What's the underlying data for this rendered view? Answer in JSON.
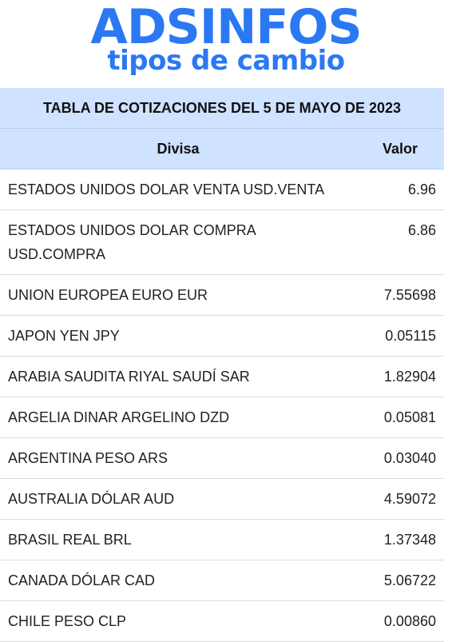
{
  "logo": {
    "name": "ADSINFOS",
    "tagline": "tipos de cambio"
  },
  "table": {
    "caption": "TABLA DE COTIZACIONES DEL 5 DE MAYO DE 2023",
    "headers": {
      "currency": "Divisa",
      "value": "Valor"
    },
    "rows": [
      {
        "currency": "ESTADOS UNIDOS DOLAR VENTA USD.VENTA",
        "value": "6.96"
      },
      {
        "currency": "ESTADOS UNIDOS DOLAR COMPRA USD.COMPRA",
        "value": "6.86"
      },
      {
        "currency": "UNION EUROPEA EURO EUR",
        "value": "7.55698"
      },
      {
        "currency": "JAPON YEN JPY",
        "value": "0.05115"
      },
      {
        "currency": "ARABIA SAUDITA RIYAL SAUDÍ SAR",
        "value": "1.82904"
      },
      {
        "currency": "ARGELIA DINAR ARGELINO DZD",
        "value": "0.05081"
      },
      {
        "currency": "ARGENTINA PESO ARS",
        "value": "0.03040"
      },
      {
        "currency": "AUSTRALIA DÓLAR AUD",
        "value": "4.59072"
      },
      {
        "currency": "BRASIL REAL BRL",
        "value": "1.37348"
      },
      {
        "currency": "CANADA DÓLAR CAD",
        "value": "5.06722"
      },
      {
        "currency": "CHILE PESO CLP",
        "value": "0.00860"
      }
    ]
  },
  "colors": {
    "brand": "#2b78f3",
    "header_bg": "#cfe2ff"
  }
}
